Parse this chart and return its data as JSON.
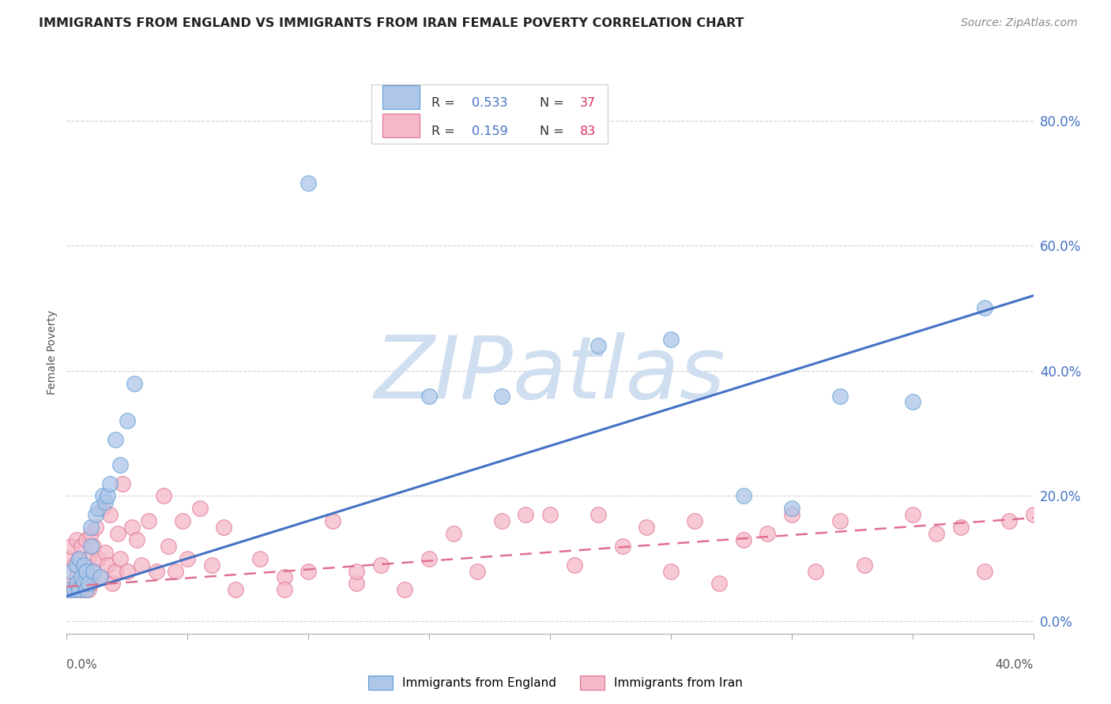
{
  "title": "IMMIGRANTS FROM ENGLAND VS IMMIGRANTS FROM IRAN FEMALE POVERTY CORRELATION CHART",
  "source": "Source: ZipAtlas.com",
  "ylabel": "Female Poverty",
  "right_yticks": [
    "0.0%",
    "20.0%",
    "40.0%",
    "60.0%",
    "80.0%"
  ],
  "right_ytick_vals": [
    0.0,
    0.2,
    0.4,
    0.6,
    0.8
  ],
  "xlim": [
    0.0,
    0.4
  ],
  "ylim": [
    -0.02,
    0.88
  ],
  "england_R": 0.533,
  "england_N": 37,
  "iran_R": 0.159,
  "iran_N": 83,
  "england_color": "#aec6e8",
  "england_edge_color": "#5b9bd5",
  "iran_color": "#f4b8c8",
  "iran_edge_color": "#e07090",
  "england_line_color": "#4472c4",
  "iran_line_color": "#e07090",
  "watermark": "ZIPatlas",
  "watermark_color": "#d0dff0",
  "legend_R_color": "#4472c4",
  "legend_N_color": "#e03060",
  "background_color": "#ffffff",
  "grid_color": "#d0d0d0",
  "england_scatter_x": [
    0.001,
    0.002,
    0.003,
    0.004,
    0.004,
    0.005,
    0.005,
    0.006,
    0.007,
    0.007,
    0.008,
    0.008,
    0.009,
    0.01,
    0.01,
    0.011,
    0.012,
    0.013,
    0.014,
    0.015,
    0.016,
    0.017,
    0.018,
    0.02,
    0.022,
    0.025,
    0.028,
    0.1,
    0.15,
    0.18,
    0.22,
    0.25,
    0.28,
    0.3,
    0.32,
    0.35,
    0.38
  ],
  "england_scatter_y": [
    0.05,
    0.08,
    0.05,
    0.06,
    0.09,
    0.05,
    0.1,
    0.07,
    0.06,
    0.09,
    0.05,
    0.08,
    0.06,
    0.12,
    0.15,
    0.08,
    0.17,
    0.18,
    0.07,
    0.2,
    0.19,
    0.2,
    0.22,
    0.29,
    0.25,
    0.32,
    0.38,
    0.7,
    0.36,
    0.36,
    0.44,
    0.45,
    0.2,
    0.18,
    0.36,
    0.35,
    0.5
  ],
  "iran_scatter_x": [
    0.001,
    0.001,
    0.002,
    0.002,
    0.003,
    0.003,
    0.004,
    0.004,
    0.005,
    0.005,
    0.006,
    0.006,
    0.007,
    0.007,
    0.008,
    0.008,
    0.009,
    0.009,
    0.01,
    0.01,
    0.011,
    0.011,
    0.012,
    0.013,
    0.014,
    0.015,
    0.016,
    0.017,
    0.018,
    0.019,
    0.02,
    0.021,
    0.022,
    0.023,
    0.025,
    0.027,
    0.029,
    0.031,
    0.034,
    0.037,
    0.04,
    0.042,
    0.045,
    0.048,
    0.05,
    0.055,
    0.06,
    0.065,
    0.07,
    0.08,
    0.09,
    0.1,
    0.11,
    0.12,
    0.13,
    0.14,
    0.15,
    0.17,
    0.19,
    0.21,
    0.23,
    0.25,
    0.27,
    0.29,
    0.31,
    0.33,
    0.35,
    0.37,
    0.39,
    0.18,
    0.22,
    0.26,
    0.3,
    0.09,
    0.12,
    0.16,
    0.2,
    0.24,
    0.28,
    0.32,
    0.36,
    0.4,
    0.38
  ],
  "iran_scatter_y": [
    0.05,
    0.1,
    0.06,
    0.12,
    0.05,
    0.09,
    0.07,
    0.13,
    0.05,
    0.1,
    0.06,
    0.12,
    0.05,
    0.09,
    0.07,
    0.13,
    0.05,
    0.1,
    0.06,
    0.14,
    0.08,
    0.12,
    0.15,
    0.1,
    0.07,
    0.18,
    0.11,
    0.09,
    0.17,
    0.06,
    0.08,
    0.14,
    0.1,
    0.22,
    0.08,
    0.15,
    0.13,
    0.09,
    0.16,
    0.08,
    0.2,
    0.12,
    0.08,
    0.16,
    0.1,
    0.18,
    0.09,
    0.15,
    0.05,
    0.1,
    0.07,
    0.08,
    0.16,
    0.06,
    0.09,
    0.05,
    0.1,
    0.08,
    0.17,
    0.09,
    0.12,
    0.08,
    0.06,
    0.14,
    0.08,
    0.09,
    0.17,
    0.15,
    0.16,
    0.16,
    0.17,
    0.16,
    0.17,
    0.05,
    0.08,
    0.14,
    0.17,
    0.15,
    0.13,
    0.16,
    0.14,
    0.17,
    0.08
  ],
  "eng_trend_x": [
    0.0,
    0.4
  ],
  "eng_trend_y": [
    0.04,
    0.52
  ],
  "iran_trend_x": [
    0.0,
    0.4
  ],
  "iran_trend_y": [
    0.055,
    0.165
  ]
}
